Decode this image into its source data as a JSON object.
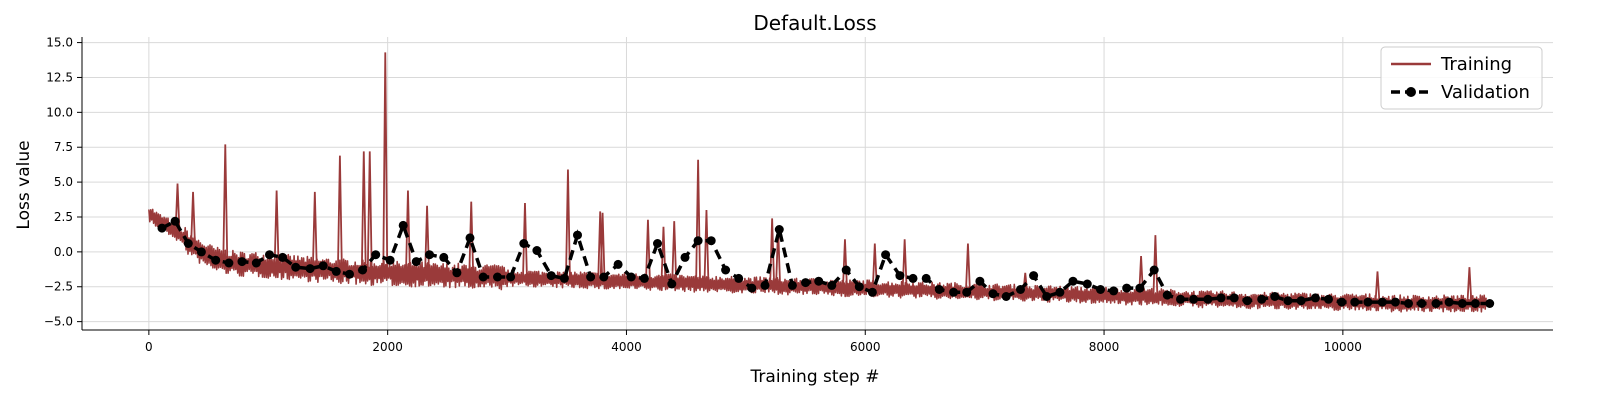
{
  "chart_data": {
    "type": "line",
    "title": "Default.Loss",
    "xlabel": "Training step #",
    "ylabel": "Loss value",
    "xlim": [
      -560,
      11760
    ],
    "ylim": [
      -5.6,
      15.4
    ],
    "xticks": [
      0,
      2000,
      4000,
      6000,
      8000,
      10000
    ],
    "xtick_labels": [
      "0",
      "2000",
      "4000",
      "6000",
      "8000",
      "10000"
    ],
    "yticks": [
      -5.0,
      -2.5,
      0.0,
      2.5,
      5.0,
      7.5,
      10.0,
      12.5,
      15.0
    ],
    "ytick_labels": [
      "−5.0",
      "−2.5",
      "0.0",
      "2.5",
      "5.0",
      "7.5",
      "10.0",
      "12.5",
      "15.0"
    ],
    "grid": true,
    "legend": "top-right",
    "series": [
      {
        "name": "Training",
        "color": "#9a3a3a",
        "style": "solid",
        "markers": false,
        "x": [
          0,
          50,
          100,
          150,
          200,
          250,
          300,
          350,
          400,
          450,
          500,
          550,
          600,
          650,
          700,
          800,
          900,
          1000,
          1100,
          1200,
          1300,
          1400,
          1500,
          1600,
          1700,
          1800,
          1900,
          2000,
          2100,
          2200,
          2300,
          2400,
          2500,
          2600,
          2700,
          2800,
          2900,
          3000,
          3200,
          3400,
          3600,
          3800,
          4000,
          4200,
          4400,
          4600,
          4800,
          5000,
          5200,
          5400,
          5600,
          5800,
          6000,
          6200,
          6400,
          6600,
          6800,
          7000,
          7200,
          7400,
          7600,
          7800,
          8000,
          8200,
          8400,
          8600,
          8800,
          9000,
          9200,
          9400,
          9600,
          9800,
          10000,
          10200,
          10400,
          10600,
          10800,
          11000,
          11200
        ],
        "y": [
          2.8,
          2.4,
          2.1,
          1.9,
          1.6,
          1.3,
          0.9,
          0.5,
          0.2,
          -0.1,
          -0.3,
          -0.5,
          -0.6,
          -0.7,
          -0.8,
          -0.9,
          -0.9,
          -1.0,
          -1.1,
          -1.1,
          -1.2,
          -1.3,
          -1.3,
          -1.4,
          -1.4,
          -1.5,
          -1.5,
          -1.5,
          -1.6,
          -1.6,
          -1.6,
          -1.7,
          -1.7,
          -1.7,
          -1.8,
          -1.8,
          -1.8,
          -1.9,
          -1.9,
          -2.0,
          -2.0,
          -2.1,
          -2.1,
          -2.2,
          -2.2,
          -2.3,
          -2.3,
          -2.4,
          -2.4,
          -2.5,
          -2.5,
          -2.6,
          -2.6,
          -2.7,
          -2.7,
          -2.8,
          -2.8,
          -2.9,
          -2.9,
          -3.0,
          -3.0,
          -3.1,
          -3.1,
          -3.2,
          -3.2,
          -3.3,
          -3.4,
          -3.4,
          -3.5,
          -3.5,
          -3.5,
          -3.6,
          -3.6,
          -3.6,
          -3.7,
          -3.7,
          -3.7,
          -3.7,
          -3.7
        ],
        "spikes": [
          [
            240,
            4.9
          ],
          [
            370,
            4.3
          ],
          [
            640,
            7.7
          ],
          [
            1070,
            4.4
          ],
          [
            1390,
            4.3
          ],
          [
            1600,
            6.9
          ],
          [
            1800,
            7.2
          ],
          [
            1850,
            7.2
          ],
          [
            1980,
            14.3
          ],
          [
            2170,
            4.4
          ],
          [
            2330,
            3.3
          ],
          [
            2700,
            3.6
          ],
          [
            3150,
            3.5
          ],
          [
            3510,
            5.9
          ],
          [
            3800,
            2.8
          ],
          [
            3780,
            2.9
          ],
          [
            4180,
            2.3
          ],
          [
            4310,
            1.8
          ],
          [
            4400,
            2.2
          ],
          [
            4600,
            6.6
          ],
          [
            4670,
            3.0
          ],
          [
            5220,
            2.4
          ],
          [
            5270,
            1.8
          ],
          [
            5830,
            0.9
          ],
          [
            6080,
            0.6
          ],
          [
            6330,
            0.9
          ],
          [
            6860,
            0.6
          ],
          [
            7340,
            -1.5
          ],
          [
            8310,
            -0.3
          ],
          [
            8430,
            1.2
          ],
          [
            10290,
            -1.4
          ],
          [
            11060,
            -1.1
          ]
        ],
        "noise_band": 0.6
      },
      {
        "name": "Validation",
        "color": "#000000",
        "style": "dashed",
        "markers": true,
        "x": [
          110,
          220,
          330,
          440,
          560,
          670,
          780,
          900,
          1010,
          1120,
          1230,
          1350,
          1460,
          1570,
          1680,
          1790,
          1900,
          2020,
          2130,
          2240,
          2350,
          2470,
          2580,
          2690,
          2800,
          2920,
          3030,
          3140,
          3250,
          3370,
          3480,
          3590,
          3700,
          3810,
          3930,
          4040,
          4150,
          4260,
          4380,
          4490,
          4600,
          4710,
          4830,
          4940,
          5050,
          5160,
          5280,
          5390,
          5500,
          5610,
          5720,
          5840,
          5950,
          6060,
          6170,
          6290,
          6400,
          6510,
          6620,
          6740,
          6850,
          6960,
          7070,
          7180,
          7300,
          7410,
          7520,
          7630,
          7740,
          7860,
          7970,
          8080,
          8190,
          8300,
          8420,
          8530,
          8640,
          8750,
          8870,
          8980,
          9090,
          9200,
          9320,
          9430,
          9540,
          9650,
          9770,
          9880,
          9990,
          10100,
          10210,
          10330,
          10440,
          10550,
          10660,
          10780,
          10890,
          11000,
          11110,
          11230
        ],
        "y": [
          1.7,
          2.2,
          0.6,
          0.0,
          -0.6,
          -0.8,
          -0.7,
          -0.8,
          -0.2,
          -0.4,
          -1.1,
          -1.2,
          -1.0,
          -1.4,
          -1.6,
          -1.3,
          -0.2,
          -0.6,
          1.9,
          -0.7,
          -0.2,
          -0.4,
          -1.5,
          1.0,
          -1.8,
          -1.8,
          -1.8,
          0.6,
          0.1,
          -1.7,
          -1.9,
          1.2,
          -1.8,
          -1.8,
          -0.9,
          -1.8,
          -1.9,
          0.6,
          -2.3,
          -0.4,
          0.8,
          0.8,
          -1.3,
          -1.9,
          -2.6,
          -2.4,
          1.6,
          -2.4,
          -2.2,
          -2.1,
          -2.4,
          -1.3,
          -2.5,
          -2.9,
          -0.2,
          -1.7,
          -1.9,
          -1.9,
          -2.7,
          -2.9,
          -2.9,
          -2.1,
          -3.0,
          -3.2,
          -2.7,
          -1.7,
          -3.2,
          -2.9,
          -2.1,
          -2.3,
          -2.7,
          -2.8,
          -2.6,
          -2.6,
          -1.3,
          -3.1,
          -3.4,
          -3.4,
          -3.4,
          -3.3,
          -3.3,
          -3.5,
          -3.4,
          -3.2,
          -3.5,
          -3.5,
          -3.3,
          -3.4,
          -3.6,
          -3.6,
          -3.6,
          -3.6,
          -3.6,
          -3.7,
          -3.7,
          -3.7,
          -3.6,
          -3.7,
          -3.7,
          -3.7
        ]
      }
    ]
  }
}
